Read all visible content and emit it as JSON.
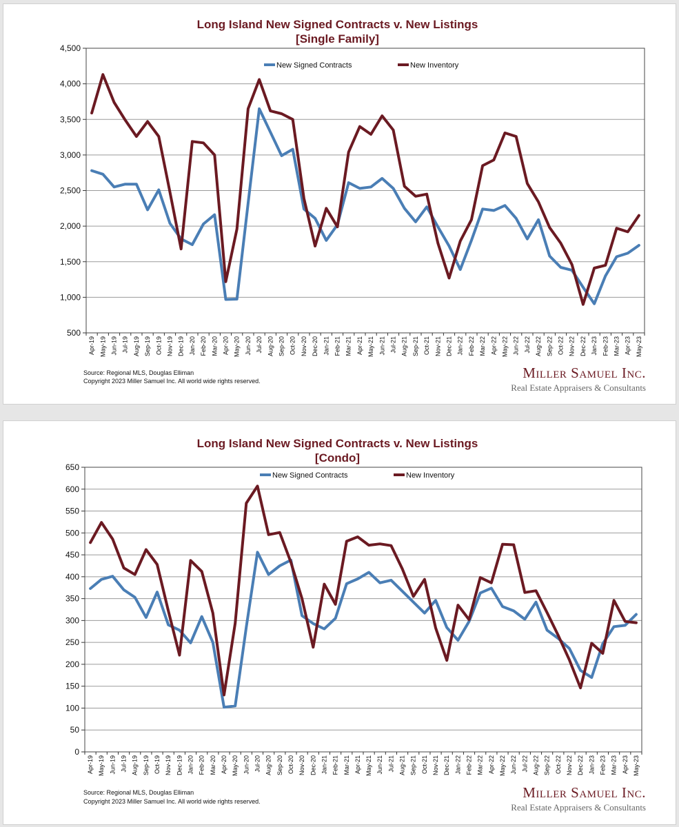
{
  "colors": {
    "contracts": "#4a7eb5",
    "inventory": "#6b1a22",
    "title": "#6b1a22",
    "brand": "#6b1a22"
  },
  "footer": {
    "source": "Source: Regional MLS, Douglas Elliman",
    "copyright": "Copyright 2023 Miller Samuel Inc.  All world wide rights reserved.",
    "brand": "Miller Samuel Inc.",
    "tagline": "Real Estate Appraisers & Consultants"
  },
  "chart_data": [
    {
      "type": "line",
      "title": "Long Island New Signed Contracts v. New Listings",
      "subtitle": "[Single Family]",
      "xlabel": "",
      "ylabel": "",
      "ylim": [
        500,
        4500
      ],
      "yticks": [
        "500",
        "1,000",
        "1,500",
        "2,000",
        "2,500",
        "3,000",
        "3,500",
        "4,000",
        "4,500"
      ],
      "grid": true,
      "legend_position": "top",
      "x": [
        "Apr-19",
        "May-19",
        "Jun-19",
        "Jul-19",
        "Aug-19",
        "Sep-19",
        "Oct-19",
        "Nov-19",
        "Dec-19",
        "Jan-20",
        "Feb-20",
        "Mar-20",
        "Apr-20",
        "May-20",
        "Jun-20",
        "Jul-20",
        "Aug-20",
        "Sep-20",
        "Oct-20",
        "Nov-20",
        "Dec-20",
        "Jan-21",
        "Feb-21",
        "Mar-21",
        "Apr-21",
        "May-21",
        "Jun-21",
        "Jul-21",
        "Aug-21",
        "Sep-21",
        "Oct-21",
        "Nov-21",
        "Dec-21",
        "Jan-22",
        "Feb-22",
        "Mar-22",
        "Apr-22",
        "May-22",
        "Jun-22",
        "Jul-22",
        "Aug-22",
        "Sep-22",
        "Oct-22",
        "Nov-22",
        "Dec-22",
        "Jan-23",
        "Feb-23",
        "Mar-23",
        "Apr-23",
        "May-23"
      ],
      "series": [
        {
          "name": "New Signed Contracts",
          "color": "#4a7eb5",
          "values": [
            2780,
            2730,
            2550,
            2590,
            2590,
            2230,
            2510,
            2040,
            1820,
            1740,
            2030,
            2160,
            970,
            975,
            2320,
            3650,
            3320,
            2990,
            3080,
            2240,
            2110,
            1800,
            2020,
            2610,
            2530,
            2550,
            2670,
            2530,
            2250,
            2060,
            2270,
            1990,
            1720,
            1390,
            1800,
            2240,
            2220,
            2290,
            2110,
            1820,
            2090,
            1580,
            1420,
            1380,
            1140,
            910,
            1300,
            1570,
            1620,
            1730
          ]
        },
        {
          "name": "New Inventory",
          "color": "#6b1a22",
          "values": [
            3590,
            4130,
            3740,
            3490,
            3260,
            3470,
            3260,
            2480,
            1680,
            3190,
            3170,
            3000,
            1220,
            1960,
            3650,
            4060,
            3620,
            3580,
            3500,
            2390,
            1720,
            2250,
            1990,
            3040,
            3400,
            3290,
            3550,
            3350,
            2560,
            2420,
            2450,
            1760,
            1270,
            1790,
            2090,
            2850,
            2930,
            3310,
            3260,
            2600,
            2340,
            1980,
            1760,
            1460,
            900,
            1410,
            1450,
            1970,
            1920,
            2150
          ]
        }
      ]
    },
    {
      "type": "line",
      "title": "Long Island New Signed Contracts v. New Listings",
      "subtitle": "[Condo]",
      "xlabel": "",
      "ylabel": "",
      "ylim": [
        0,
        650
      ],
      "yticks": [
        "0",
        "50",
        "100",
        "150",
        "200",
        "250",
        "300",
        "350",
        "400",
        "450",
        "500",
        "550",
        "600",
        "650"
      ],
      "grid": true,
      "legend_position": "top",
      "x": [
        "Apr-19",
        "May-19",
        "Jun-19",
        "Jul-19",
        "Aug-19",
        "Sep-19",
        "Oct-19",
        "Nov-19",
        "Dec-19",
        "Jan-20",
        "Feb-20",
        "Mar-20",
        "Apr-20",
        "May-20",
        "Jun-20",
        "Jul-20",
        "Aug-20",
        "Sep-20",
        "Oct-20",
        "Nov-20",
        "Dec-20",
        "Jan-21",
        "Feb-21",
        "Mar-21",
        "Apr-21",
        "May-21",
        "Jun-21",
        "Jul-21",
        "Aug-21",
        "Sep-21",
        "Oct-21",
        "Nov-21",
        "Dec-21",
        "Jan-22",
        "Feb-22",
        "Mar-22",
        "Apr-22",
        "May-22",
        "Jun-22",
        "Jul-22",
        "Aug-22",
        "Sep-22",
        "Oct-22",
        "Nov-22",
        "Dec-22",
        "Jan-23",
        "Feb-23",
        "Mar-23",
        "Apr-23",
        "May-23"
      ],
      "series": [
        {
          "name": "New Signed Contracts",
          "color": "#4a7eb5",
          "values": [
            373,
            394,
            401,
            370,
            353,
            307,
            365,
            290,
            278,
            249,
            309,
            250,
            102,
            105,
            285,
            456,
            405,
            425,
            438,
            311,
            293,
            281,
            305,
            384,
            395,
            410,
            386,
            392,
            367,
            342,
            317,
            346,
            284,
            255,
            298,
            363,
            374,
            332,
            322,
            303,
            342,
            278,
            259,
            236,
            186,
            170,
            247,
            286,
            289,
            314
          ]
        },
        {
          "name": "New Inventory",
          "color": "#6b1a22",
          "values": [
            478,
            524,
            486,
            420,
            405,
            462,
            428,
            322,
            221,
            437,
            412,
            317,
            130,
            294,
            568,
            607,
            496,
            501,
            433,
            350,
            239,
            383,
            337,
            481,
            491,
            472,
            475,
            471,
            418,
            355,
            394,
            283,
            209,
            335,
            302,
            398,
            386,
            474,
            473,
            364,
            368,
            318,
            266,
            210,
            146,
            248,
            225,
            346,
            298,
            295
          ]
        }
      ]
    }
  ]
}
